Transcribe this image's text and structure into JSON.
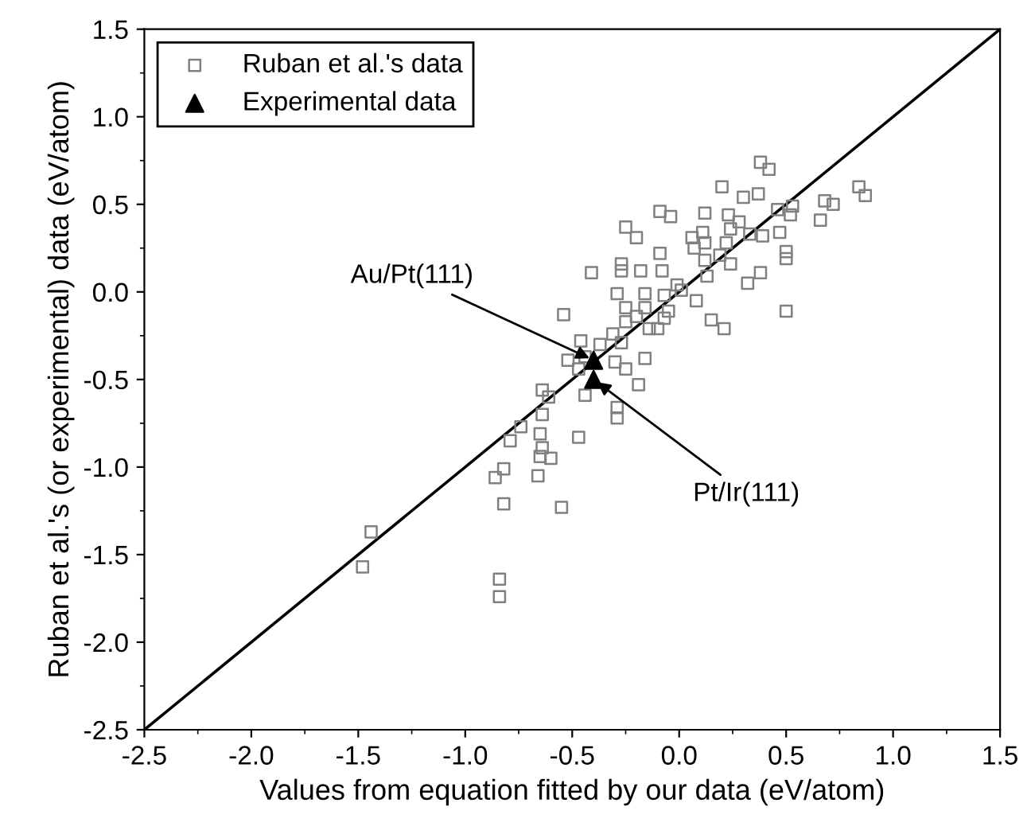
{
  "chart_data": {
    "type": "scatter",
    "xlabel": "Values from equation fitted by our data (eV/atom)",
    "ylabel": "Ruban et al.'s (or experimental) data (eV/atom)",
    "xlim": [
      -2.5,
      1.5
    ],
    "ylim": [
      -2.5,
      1.5
    ],
    "xticks": [
      {
        "value": -2.5,
        "label": "-2.5"
      },
      {
        "value": -2,
        "label": "-2.0"
      },
      {
        "value": -1.5,
        "label": "-1.5"
      },
      {
        "value": -1,
        "label": "-1.0"
      },
      {
        "value": -0.5,
        "label": "-0.5"
      },
      {
        "value": 0,
        "label": "0.0"
      },
      {
        "value": 0.5,
        "label": "0.5"
      },
      {
        "value": 1,
        "label": "1.0"
      },
      {
        "value": 1.5,
        "label": "1.5"
      }
    ],
    "yticks": [
      {
        "value": -2.5,
        "label": "-2.5"
      },
      {
        "value": -2,
        "label": "-2.0"
      },
      {
        "value": -1.5,
        "label": "-1.5"
      },
      {
        "value": -1,
        "label": "-1.0"
      },
      {
        "value": -0.5,
        "label": "-0.5"
      },
      {
        "value": 0,
        "label": "0.0"
      },
      {
        "value": 0.5,
        "label": "0.5"
      },
      {
        "value": 1,
        "label": "1.0"
      },
      {
        "value": 1.5,
        "label": "1.5"
      }
    ],
    "grid": false,
    "legend": "top left",
    "annotations": [
      {
        "text": "Au/Pt(111)",
        "x": -0.4,
        "y": -0.39
      },
      {
        "text": "Pt/Ir(111)",
        "x": -0.4,
        "y": -0.5
      }
    ],
    "series": [
      {
        "name": "Ruban et al.'s data",
        "color": "#808080",
        "marker": "square",
        "x": [
          0.38,
          0.42,
          0.2,
          0.3,
          0.37,
          -0.09,
          -0.04,
          0.12,
          0.23,
          0.28,
          0.46,
          0.53,
          0.52,
          0.68,
          0.72,
          0.66,
          0.84,
          0.87,
          -0.25,
          -0.2,
          0.11,
          0.06,
          0.12,
          0.07,
          0.24,
          0.33,
          0.39,
          0.47,
          0.22,
          0.19,
          0.12,
          0.24,
          0.13,
          0.5,
          0.5,
          0.38,
          0.32,
          -0.09,
          -0.27,
          -0.27,
          -0.18,
          -0.08,
          -0.29,
          -0.16,
          -0.07,
          -0.01,
          0.01,
          -0.25,
          -0.16,
          -0.05,
          -0.07,
          0.08,
          -0.25,
          -0.2,
          -0.14,
          -0.1,
          0.15,
          0.21,
          0.5,
          -0.31,
          -0.27,
          -0.3,
          -0.25,
          -0.16,
          -0.19,
          -0.29,
          -0.29,
          -0.41,
          -0.54,
          -0.46,
          -0.37,
          -0.52,
          -0.44,
          -0.47,
          -0.44,
          -0.64,
          -0.61,
          -0.64,
          -0.74,
          -0.79,
          -0.65,
          -0.64,
          -0.65,
          -0.6,
          -0.47,
          -0.82,
          -0.86,
          -0.66,
          -0.82,
          -0.55,
          -1.44,
          -1.48,
          -0.84,
          -0.84
        ],
        "values": [
          0.74,
          0.7,
          0.6,
          0.54,
          0.56,
          0.46,
          0.43,
          0.45,
          0.44,
          0.4,
          0.47,
          0.49,
          0.44,
          0.52,
          0.5,
          0.41,
          0.6,
          0.55,
          0.37,
          0.31,
          0.34,
          0.31,
          0.28,
          0.25,
          0.36,
          0.33,
          0.32,
          0.34,
          0.28,
          0.21,
          0.18,
          0.16,
          0.09,
          0.23,
          0.19,
          0.11,
          0.05,
          0.22,
          0.16,
          0.12,
          0.12,
          0.12,
          -0.01,
          -0.01,
          -0.02,
          0.04,
          0.01,
          -0.09,
          -0.09,
          -0.11,
          -0.15,
          -0.05,
          -0.17,
          -0.14,
          -0.21,
          -0.21,
          -0.16,
          -0.21,
          -0.11,
          -0.24,
          -0.29,
          -0.4,
          -0.44,
          -0.38,
          -0.53,
          -0.72,
          -0.66,
          0.11,
          -0.13,
          -0.28,
          -0.3,
          -0.39,
          -0.37,
          -0.44,
          -0.59,
          -0.56,
          -0.6,
          -0.7,
          -0.77,
          -0.85,
          -0.81,
          -0.89,
          -0.94,
          -0.95,
          -0.83,
          -1.01,
          -1.06,
          -1.05,
          -1.21,
          -1.23,
          -1.37,
          -1.57,
          -1.64,
          -1.74
        ]
      },
      {
        "name": "Experimental data",
        "color": "#000000",
        "marker": "triangle",
        "x": [
          -0.4,
          -0.4
        ],
        "values": [
          -0.39,
          -0.5
        ]
      },
      {
        "type": "line",
        "color": "#000000",
        "line_style": "solid",
        "marker": "none",
        "x": [
          -2.5,
          1.5
        ],
        "values": [
          -2.5,
          1.5
        ]
      }
    ]
  }
}
